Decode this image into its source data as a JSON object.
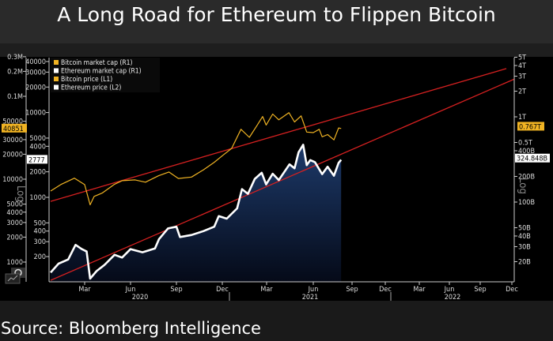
{
  "title": "A Long Road for Ethereum to Flippen Bitcoin",
  "source": "Source: Bloomberg Intelligence",
  "chart_data": {
    "type": "line",
    "title": "A Long Road for Ethereum to Flippen Bitcoin",
    "y_scale": "log",
    "axis_word_left": "Log",
    "axis_word_right": "Log",
    "legend_placement": "top-left",
    "legend": [
      {
        "label": "Bitcoin market cap (R1)",
        "color": "#f0b323"
      },
      {
        "label": "Ethereum market cap (R1)",
        "color": "#ffffff"
      },
      {
        "label": "Bitcoin price (L1)",
        "color": "#f0b323"
      },
      {
        "label": "Ethereum price (L2)",
        "color": "#ffffff"
      }
    ],
    "x_ticks": [
      {
        "label": "Mar",
        "date": "2020-03-01"
      },
      {
        "label": "Jun",
        "date": "2020-06-01"
      },
      {
        "label": "Sep",
        "date": "2020-09-01"
      },
      {
        "label": "Dec",
        "date": "2020-12-01"
      },
      {
        "label": "Mar",
        "date": "2021-03-01"
      },
      {
        "label": "Jun",
        "date": "2021-06-01"
      },
      {
        "label": "Sep",
        "date": "2021-09-01"
      },
      {
        "label": "Dec",
        "date": "2021-12-01"
      },
      {
        "label": "Mar",
        "date": "2022-03-01"
      },
      {
        "label": "Jun",
        "date": "2022-06-01"
      },
      {
        "label": "Sep",
        "date": "2022-09-01"
      },
      {
        "label": "Dec",
        "date": "2022-12-01"
      }
    ],
    "x_years": [
      "2020",
      "2021",
      "2022"
    ],
    "x_range": [
      "2020-01-01",
      "2022-12-31"
    ],
    "axis_outer_left_ticks": [
      "0.3M",
      "0.2M",
      "0.1M",
      "50000",
      "30000",
      "20000",
      "10000",
      "5000",
      "4000",
      "3000",
      "2000",
      "1000"
    ],
    "axis_outer_left_values": [
      300000,
      200000,
      100000,
      50000,
      30000,
      20000,
      10000,
      5000,
      4000,
      3000,
      2000,
      1000
    ],
    "axis_inner_left_ticks": [
      "40000",
      "30000",
      "20000",
      "10000",
      "5000",
      "4000",
      "2000",
      "1000",
      "500",
      "400",
      "300",
      "200"
    ],
    "axis_inner_left_values": [
      40000,
      30000,
      20000,
      10000,
      5000,
      4000,
      2000,
      1000,
      500,
      400,
      300,
      200
    ],
    "axis_right_ticks": [
      "5T",
      "4T",
      "3T",
      "2T",
      "1T",
      "0.5T",
      "400B",
      "200B",
      "100B",
      "50B",
      "40B",
      "30B",
      "20B"
    ],
    "axis_right_values": [
      5000000000000.0,
      4000000000000.0,
      3000000000000.0,
      2000000000000.0,
      1000000000000.0,
      500000000000.0,
      400000000000.0,
      200000000000.0,
      100000000000.0,
      50000000000.0,
      40000000000.0,
      30000000000.0,
      20000000000.0
    ],
    "last_value_labels": {
      "bitcoin_price": "40851",
      "ethereum_price": "2777",
      "bitcoin_market_cap": "0.767T",
      "ethereum_market_cap": "324.848B"
    },
    "series": [
      {
        "name": "Bitcoin price (L1)",
        "color": "#f0b323",
        "axis": "outer-left",
        "points": [
          [
            "2020-01-01",
            7200
          ],
          [
            "2020-01-20",
            8700
          ],
          [
            "2020-02-12",
            10300
          ],
          [
            "2020-03-01",
            8600
          ],
          [
            "2020-03-12",
            4900
          ],
          [
            "2020-03-20",
            6200
          ],
          [
            "2020-04-05",
            6800
          ],
          [
            "2020-04-30",
            8700
          ],
          [
            "2020-05-15",
            9600
          ],
          [
            "2020-06-10",
            9800
          ],
          [
            "2020-07-01",
            9200
          ],
          [
            "2020-07-27",
            11000
          ],
          [
            "2020-08-17",
            12200
          ],
          [
            "2020-09-05",
            10200
          ],
          [
            "2020-10-01",
            10600
          ],
          [
            "2020-10-25",
            13000
          ],
          [
            "2020-11-15",
            16000
          ],
          [
            "2020-12-01",
            19200
          ],
          [
            "2020-12-20",
            23500
          ],
          [
            "2021-01-08",
            40000
          ],
          [
            "2021-01-25",
            32000
          ],
          [
            "2021-02-10",
            45000
          ],
          [
            "2021-02-21",
            57000
          ],
          [
            "2021-02-28",
            45000
          ],
          [
            "2021-03-13",
            61000
          ],
          [
            "2021-03-25",
            52000
          ],
          [
            "2021-04-14",
            63500
          ],
          [
            "2021-04-25",
            49000
          ],
          [
            "2021-05-08",
            58000
          ],
          [
            "2021-05-19",
            37000
          ],
          [
            "2021-06-01",
            36500
          ],
          [
            "2021-06-15",
            40000
          ],
          [
            "2021-06-22",
            32500
          ],
          [
            "2021-07-05",
            34500
          ],
          [
            "2021-07-20",
            29800
          ],
          [
            "2021-07-31",
            41500
          ],
          [
            "2021-08-06",
            40851
          ]
        ]
      },
      {
        "name": "Ethereum price (L2)",
        "color": "#ffffff",
        "axis": "inner-left",
        "area_fill": "#0c2044",
        "points": [
          [
            "2020-01-01",
            130
          ],
          [
            "2020-01-15",
            165
          ],
          [
            "2020-02-01",
            185
          ],
          [
            "2020-02-14",
            275
          ],
          [
            "2020-02-25",
            245
          ],
          [
            "2020-03-05",
            230
          ],
          [
            "2020-03-12",
            110
          ],
          [
            "2020-03-25",
            135
          ],
          [
            "2020-04-10",
            160
          ],
          [
            "2020-04-30",
            210
          ],
          [
            "2020-05-15",
            195
          ],
          [
            "2020-06-01",
            245
          ],
          [
            "2020-06-25",
            225
          ],
          [
            "2020-07-20",
            250
          ],
          [
            "2020-07-28",
            320
          ],
          [
            "2020-08-15",
            430
          ],
          [
            "2020-09-01",
            450
          ],
          [
            "2020-09-08",
            340
          ],
          [
            "2020-10-01",
            360
          ],
          [
            "2020-10-25",
            400
          ],
          [
            "2020-11-15",
            450
          ],
          [
            "2020-11-24",
            600
          ],
          [
            "2020-12-10",
            560
          ],
          [
            "2020-12-31",
            740
          ],
          [
            "2021-01-10",
            1250
          ],
          [
            "2021-01-22",
            1100
          ],
          [
            "2021-02-05",
            1650
          ],
          [
            "2021-02-19",
            1950
          ],
          [
            "2021-02-28",
            1420
          ],
          [
            "2021-03-13",
            1900
          ],
          [
            "2021-03-25",
            1600
          ],
          [
            "2021-04-15",
            2450
          ],
          [
            "2021-04-25",
            2200
          ],
          [
            "2021-05-03",
            3400
          ],
          [
            "2021-05-12",
            4170
          ],
          [
            "2021-05-19",
            2400
          ],
          [
            "2021-05-26",
            2750
          ],
          [
            "2021-06-05",
            2600
          ],
          [
            "2021-06-22",
            1880
          ],
          [
            "2021-07-05",
            2300
          ],
          [
            "2021-07-20",
            1800
          ],
          [
            "2021-07-31",
            2550
          ],
          [
            "2021-08-06",
            2777
          ]
        ]
      }
    ],
    "trend_lines": [
      {
        "color": "#d42020",
        "axis": "outer-left",
        "from": [
          "2020-01-01",
          5400
        ],
        "to": [
          "2022-11-15",
          216000
        ]
      },
      {
        "color": "#d42020",
        "axis": "inner-left",
        "from": [
          "2020-01-01",
          105
        ],
        "to": [
          "2022-12-31",
          24800
        ]
      }
    ]
  }
}
